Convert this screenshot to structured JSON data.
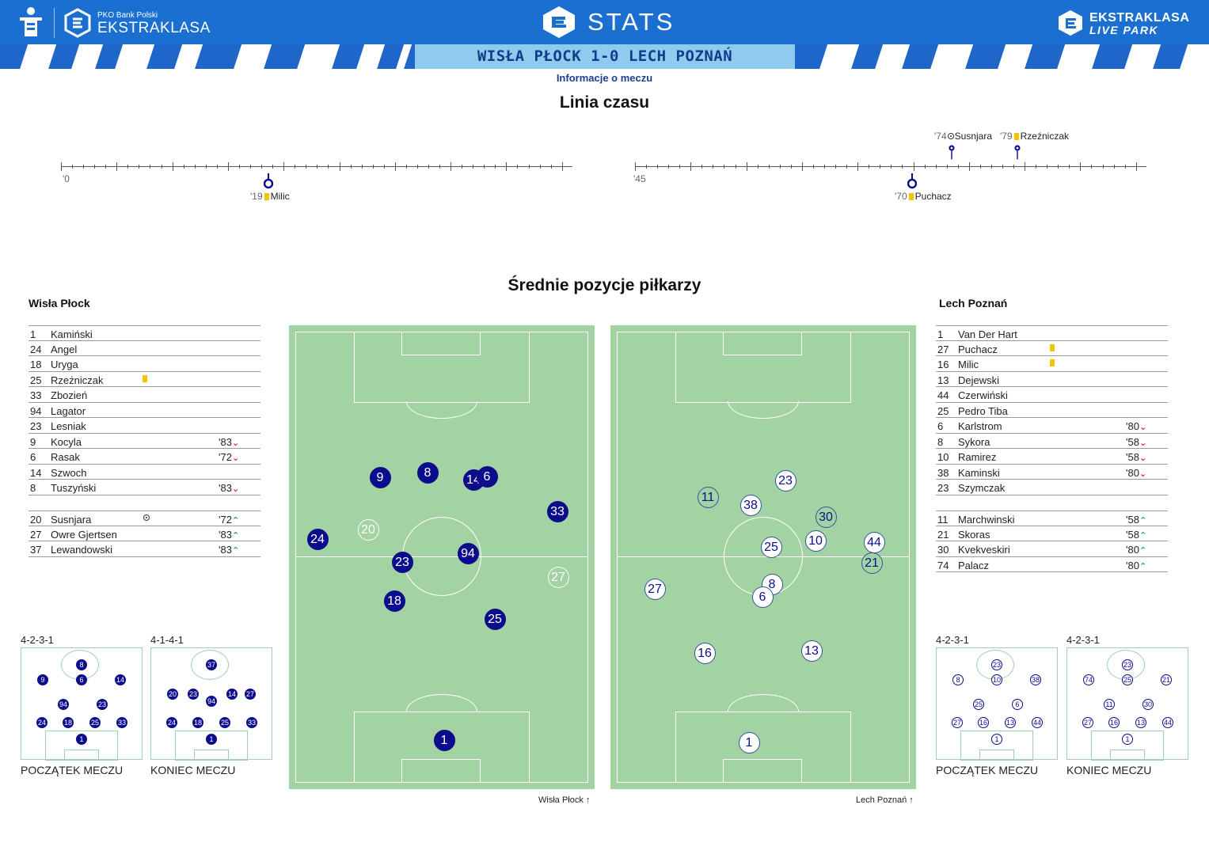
{
  "header": {
    "bank_name": "PKO Bank Polski",
    "league_name": "EKSTRAKLASA",
    "stats_label": "STATS",
    "live_line1": "EKSTRAKLASA",
    "live_line2": "LIVE PARK",
    "colors": {
      "header_bg": "#1a6fd1",
      "band_bg": "#1e66c9",
      "band_center": "#8ecbef",
      "score_text": "#143c8c"
    }
  },
  "match": {
    "score_line": "WISŁA PŁOCK 1-0  LECH POZNAŃ",
    "info_link": "Informacje o meczu"
  },
  "timeline": {
    "title": "Linia czasu",
    "first_half_start": "'0",
    "second_half_start": "'45",
    "events": [
      {
        "minute": "'19",
        "player": "Milic",
        "type": "yellow-card",
        "half": 1,
        "team": "away"
      },
      {
        "minute": "'70",
        "player": "Puchacz",
        "type": "yellow-card",
        "half": 2,
        "team": "away"
      },
      {
        "minute": "'74",
        "player": "Susnjara",
        "type": "goal",
        "half": 2,
        "team": "home"
      },
      {
        "minute": "'79",
        "player": "Rzeźniczak",
        "type": "yellow-card",
        "half": 2,
        "team": "home"
      }
    ]
  },
  "positions": {
    "title": "Średnie pozycje piłkarzy",
    "home_caption": "Wisła Płock",
    "away_caption": "Lech Poznań"
  },
  "home_team": {
    "name": "Wisła Płock",
    "starters": [
      {
        "num": "1",
        "name": "Kamiński"
      },
      {
        "num": "24",
        "name": "Angel"
      },
      {
        "num": "18",
        "name": "Uryga"
      },
      {
        "num": "25",
        "name": "Rzeźniczak",
        "card": "yellow"
      },
      {
        "num": "33",
        "name": "Zbozień"
      },
      {
        "num": "94",
        "name": "Lagator"
      },
      {
        "num": "23",
        "name": "Lesniak"
      },
      {
        "num": "9",
        "name": "Kocyla",
        "sub": "'83",
        "dir": "out"
      },
      {
        "num": "6",
        "name": "Rasak",
        "sub": "'72",
        "dir": "out"
      },
      {
        "num": "14",
        "name": "Szwoch"
      },
      {
        "num": "8",
        "name": "Tuszyński",
        "sub": "'83",
        "dir": "out"
      }
    ],
    "subs": [
      {
        "num": "20",
        "name": "Susnjara",
        "goal": true,
        "sub": "'72",
        "dir": "in"
      },
      {
        "num": "27",
        "name": "Owre Gjertsen",
        "sub": "'83",
        "dir": "in"
      },
      {
        "num": "37",
        "name": "Lewandowski",
        "sub": "'83",
        "dir": "in"
      }
    ],
    "formation_start": "4-2-3-1",
    "formation_end": "4-1-4-1",
    "avg_positions": [
      {
        "num": "9",
        "style": "home"
      },
      {
        "num": "8",
        "style": "home"
      },
      {
        "num": "14",
        "style": "home"
      },
      {
        "num": "6",
        "style": "home"
      },
      {
        "num": "33",
        "style": "home"
      },
      {
        "num": "20",
        "style": "homefade"
      },
      {
        "num": "24",
        "style": "home"
      },
      {
        "num": "94",
        "style": "home"
      },
      {
        "num": "23",
        "style": "home"
      },
      {
        "num": "27",
        "style": "homefade"
      },
      {
        "num": "18",
        "style": "home"
      },
      {
        "num": "25",
        "style": "home"
      },
      {
        "num": "1",
        "style": "home"
      }
    ],
    "mini_start": [
      "8",
      "9",
      "6",
      "14",
      "94",
      "23",
      "24",
      "18",
      "25",
      "33",
      "1"
    ],
    "mini_end": [
      "37",
      "20",
      "23",
      "94",
      "14",
      "27",
      "24",
      "18",
      "25",
      "33",
      "1"
    ]
  },
  "away_team": {
    "name": "Lech Poznań",
    "starters": [
      {
        "num": "1",
        "name": "Van Der Hart"
      },
      {
        "num": "27",
        "name": "Puchacz",
        "card": "yellow"
      },
      {
        "num": "16",
        "name": "Milic",
        "card": "yellow"
      },
      {
        "num": "13",
        "name": "Dejewski"
      },
      {
        "num": "44",
        "name": "Czerwiński"
      },
      {
        "num": "25",
        "name": "Pedro Tiba"
      },
      {
        "num": "6",
        "name": "Karlstrom",
        "sub": "'80",
        "dir": "out"
      },
      {
        "num": "8",
        "name": "Sykora",
        "sub": "'58",
        "dir": "out"
      },
      {
        "num": "10",
        "name": "Ramirez",
        "sub": "'58",
        "dir": "out"
      },
      {
        "num": "38",
        "name": "Kaminski",
        "sub": "'80",
        "dir": "out"
      },
      {
        "num": "23",
        "name": "Szymczak"
      }
    ],
    "subs": [
      {
        "num": "11",
        "name": "Marchwinski",
        "sub": "'58",
        "dir": "in"
      },
      {
        "num": "21",
        "name": "Skoras",
        "sub": "'58",
        "dir": "in"
      },
      {
        "num": "30",
        "name": "Kvekveskiri",
        "sub": "'80",
        "dir": "in"
      },
      {
        "num": "74",
        "name": "Palacz",
        "sub": "'80",
        "dir": "in"
      }
    ],
    "formation_start": "4-2-3-1",
    "formation_end": "4-2-3-1",
    "avg_positions": [
      {
        "num": "23",
        "style": "away"
      },
      {
        "num": "11",
        "style": "awayb"
      },
      {
        "num": "38",
        "style": "away"
      },
      {
        "num": "30",
        "style": "awayb"
      },
      {
        "num": "10",
        "style": "away"
      },
      {
        "num": "25",
        "style": "away"
      },
      {
        "num": "44",
        "style": "away"
      },
      {
        "num": "21",
        "style": "awayb"
      },
      {
        "num": "27",
        "style": "away"
      },
      {
        "num": "8",
        "style": "away"
      },
      {
        "num": "6",
        "style": "away"
      },
      {
        "num": "16",
        "style": "away"
      },
      {
        "num": "13",
        "style": "away"
      },
      {
        "num": "1",
        "style": "away"
      }
    ],
    "mini_start": [
      "23",
      "8",
      "10",
      "38",
      "25",
      "6",
      "27",
      "16",
      "13",
      "44",
      "1"
    ],
    "mini_end": [
      "23",
      "74",
      "25",
      "21",
      "11",
      "30",
      "27",
      "16",
      "13",
      "44",
      "1"
    ]
  },
  "labels": {
    "match_start": "POCZĄTEK MECZU",
    "match_end": "KONIEC MECZU"
  }
}
